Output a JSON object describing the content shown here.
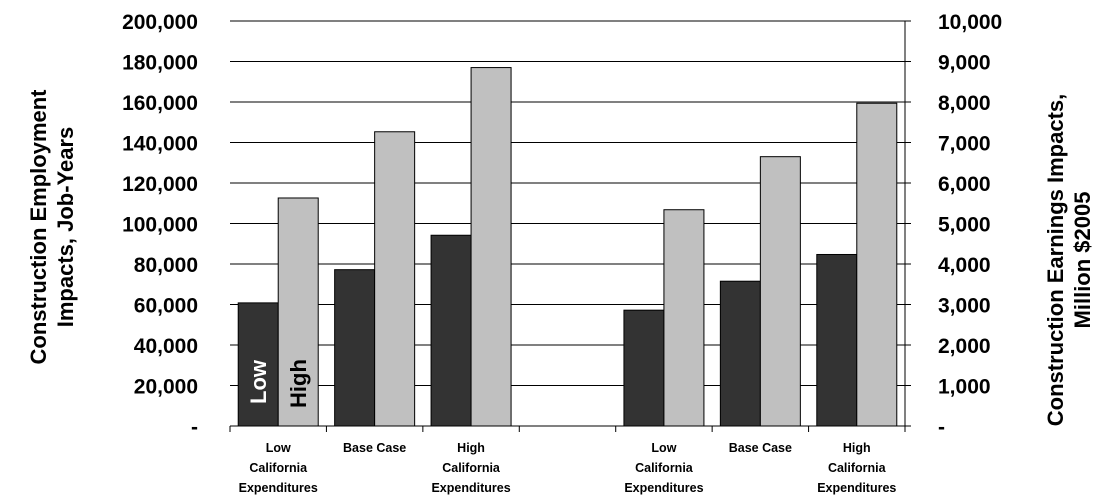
{
  "chart_data": {
    "type": "bar",
    "categories": [
      "Low California Expenditures",
      "Base Case",
      "High California Expenditures",
      "",
      "Low California Expenditures",
      "Base Case",
      "High California Expenditures"
    ],
    "category_lines": [
      [
        "Low",
        "California",
        "Expenditures"
      ],
      [
        "Base Case"
      ],
      [
        "High",
        "California",
        "Expenditures"
      ],
      [],
      [
        "Low",
        "California",
        "Expenditures"
      ],
      [
        "Base Case"
      ],
      [
        "High",
        "California",
        "Expenditures"
      ]
    ],
    "series": [
      {
        "name": "Low",
        "color": "#333333",
        "values": [
          60800,
          77200,
          94200,
          null,
          57200,
          71500,
          84700
        ]
      },
      {
        "name": "High",
        "color": "#c0c0c0",
        "values": [
          112600,
          145300,
          177000,
          null,
          106800,
          133000,
          159400
        ]
      }
    ],
    "ylabel": "Construction Employment Impacts, Job-Years",
    "ylabel_lines": [
      "Construction Employment",
      "Impacts, Job-Years"
    ],
    "y2label": "Construction Earnings Impacts, Million $2005",
    "y2label_lines": [
      "Construction Earnings Impacts,",
      "Million $2005"
    ],
    "ylim": [
      0,
      200000
    ],
    "y2lim": [
      0,
      10000
    ],
    "yticks": [
      "-",
      "20,000",
      "40,000",
      "60,000",
      "80,000",
      "100,000",
      "120,000",
      "140,000",
      "160,000",
      "180,000",
      "200,000"
    ],
    "y2ticks": [
      "-",
      "1,000",
      "2,000",
      "3,000",
      "4,000",
      "5,000",
      "6,000",
      "7,000",
      "8,000",
      "9,000",
      "10,000"
    ],
    "gridlines": true,
    "legend": "inside first group bars"
  }
}
